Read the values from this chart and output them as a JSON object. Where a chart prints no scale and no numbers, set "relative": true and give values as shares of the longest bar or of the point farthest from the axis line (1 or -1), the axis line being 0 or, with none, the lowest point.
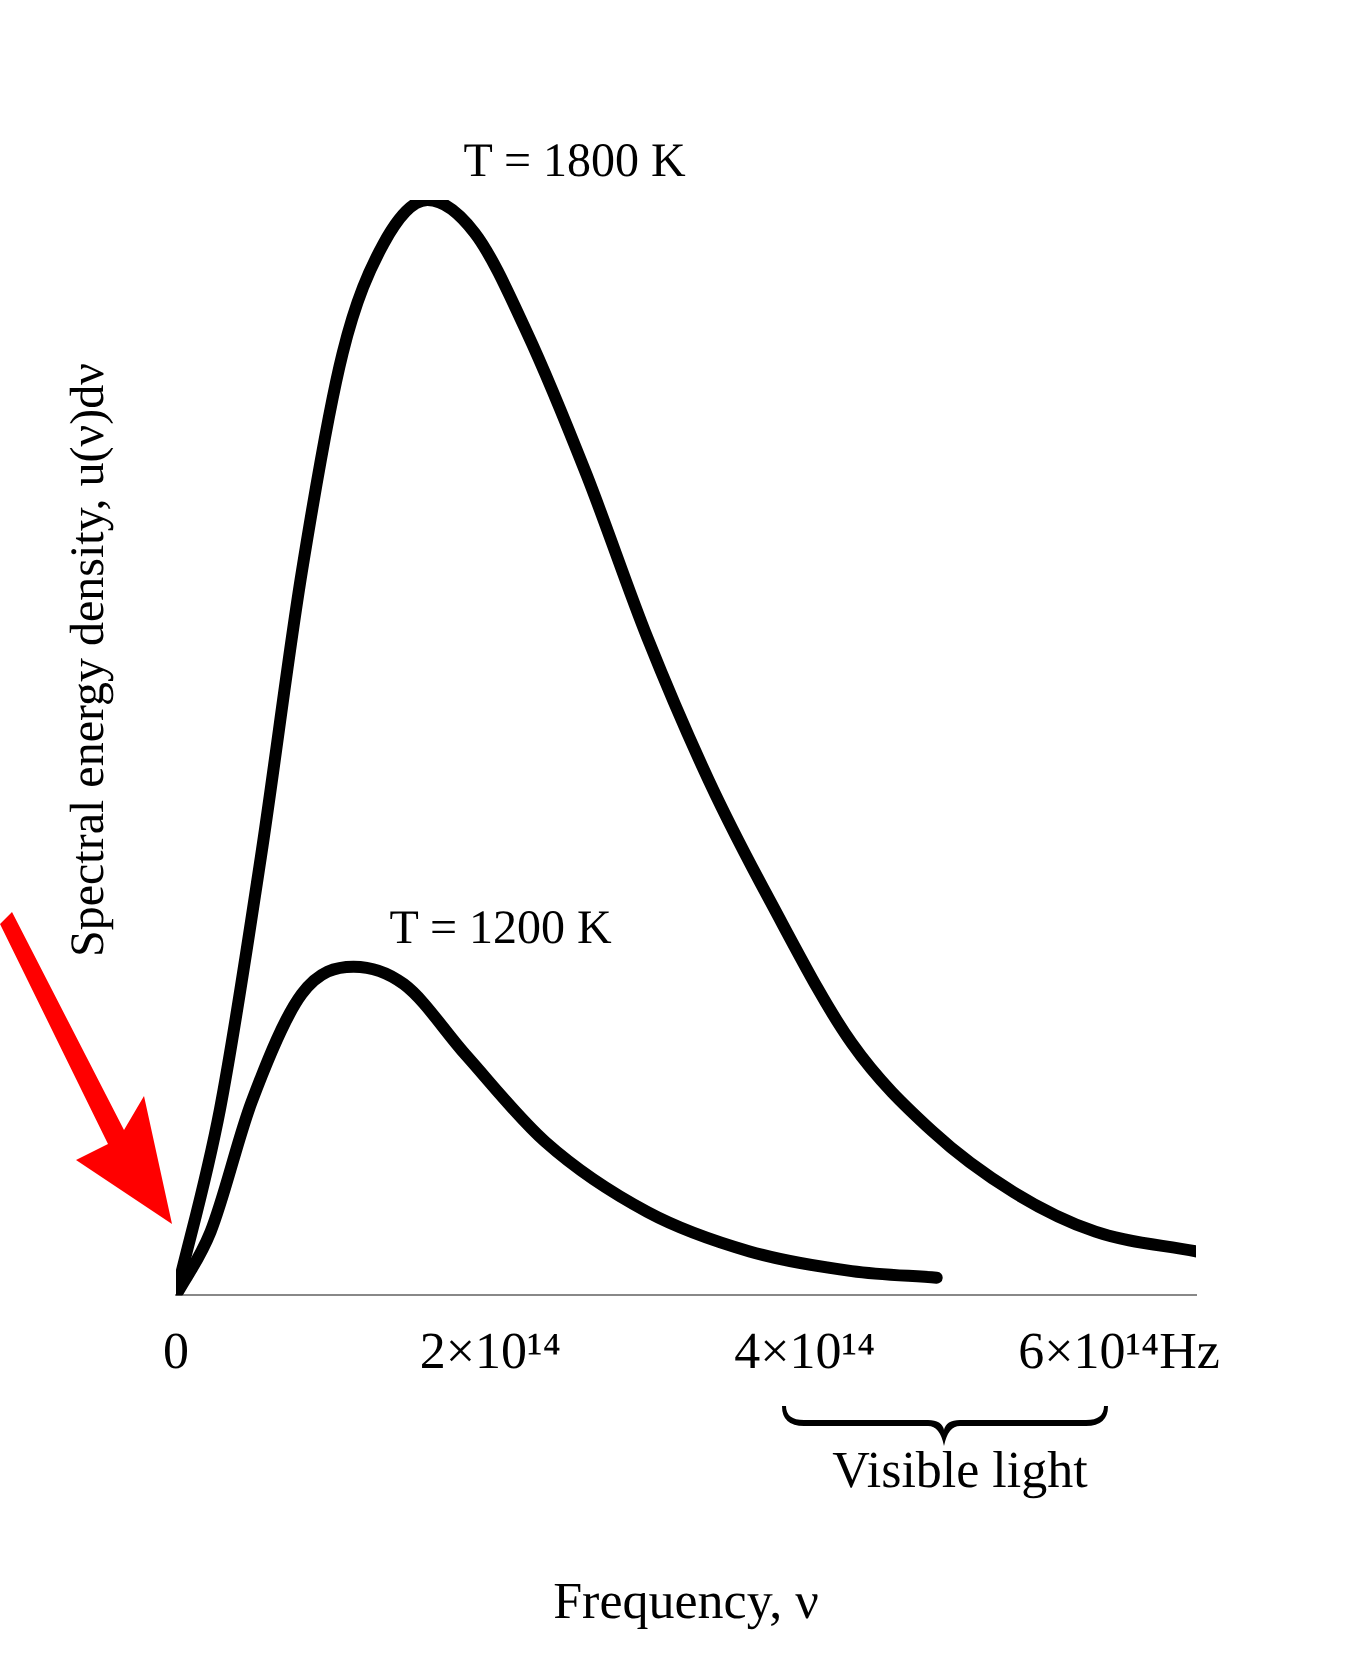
{
  "chart_data": {
    "type": "line",
    "relative": true,
    "xlabel": "Frequency, ν",
    "ylabel": "Spectral energy density, u(ν)dν",
    "xlim": [
      0,
      649000000000000
    ],
    "xticks": [
      0,
      {
        "value": 200000000000000,
        "label": "2×10¹⁴"
      },
      {
        "value": 400000000000000,
        "label": "4×10¹⁴"
      },
      {
        "value": 600000000000000,
        "label": "6×10¹⁴Hz"
      }
    ],
    "annotations": [
      "Visible light"
    ],
    "grid": false,
    "legend": false,
    "marker": "none",
    "line_style": "solid",
    "series": [
      {
        "name": "T = 1800 K",
        "color": "#000000",
        "x": [
          0,
          28000000000000,
          54000000000000,
          80000000000000,
          106000000000000,
          132000000000000,
          160000000000000,
          190000000000000,
          223000000000000,
          261000000000000,
          300000000000000,
          339000000000000,
          378000000000000,
          430000000000000,
          481000000000000,
          533000000000000,
          585000000000000,
          649000000000000
        ],
        "values": [
          0,
          0.17,
          0.4,
          0.66,
          0.86,
          0.96,
          1,
          0.97,
          0.88,
          0.75,
          0.6,
          0.47,
          0.36,
          0.23,
          0.15,
          0.094,
          0.058,
          0.04
        ]
      },
      {
        "name": "T = 1200 K",
        "color": "#000000",
        "x": [
          0,
          22000000000000,
          48000000000000,
          80000000000000,
          113000000000000,
          145000000000000,
          184000000000000,
          235000000000000,
          300000000000000,
          365000000000000,
          430000000000000,
          484000000000000
        ],
        "values": [
          0,
          0.058,
          0.176,
          0.275,
          0.3,
          0.284,
          0.22,
          0.14,
          0.076,
          0.04,
          0.022,
          0.016
        ]
      }
    ]
  }
}
